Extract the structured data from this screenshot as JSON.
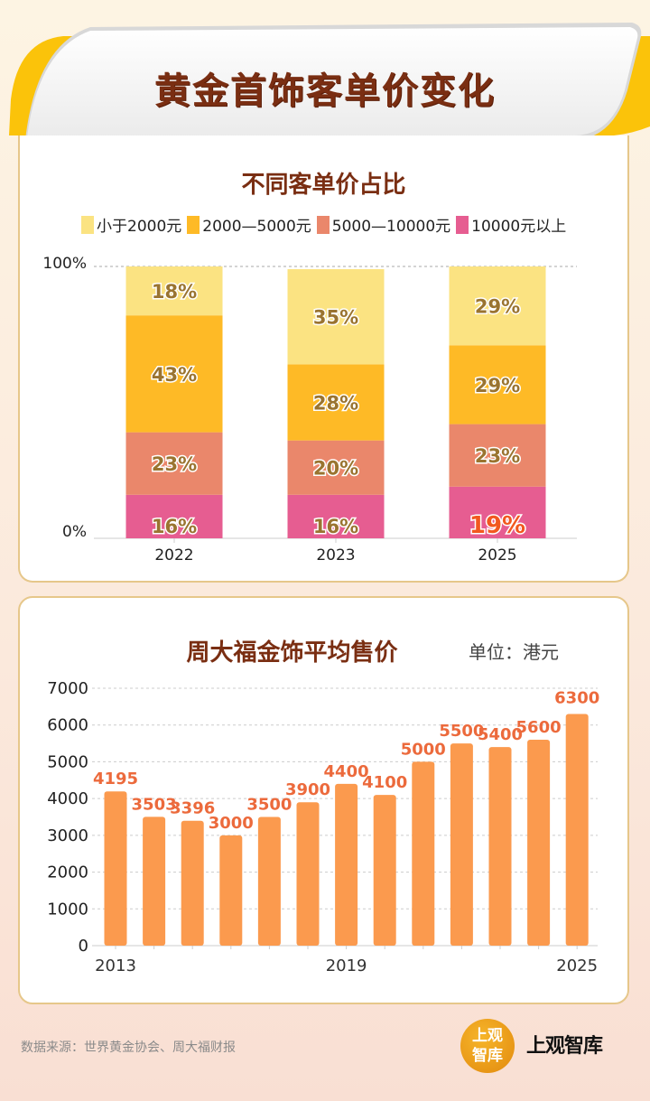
{
  "header": {
    "title": "黄金首饰客单价变化"
  },
  "colors": {
    "title_brown": "#7a2e12",
    "seg_lt2000": "#fbe382",
    "seg_2000_5000": "#feba26",
    "seg_5000_10000": "#ea876b",
    "seg_gt10000": "#e65d91",
    "seg_label": "#9a7430",
    "highlight_label": "#f2581f",
    "bar_orange": "#fb9a4e",
    "value_label": "#ec6a3c"
  },
  "chart_data": [
    {
      "type": "bar",
      "stacked": true,
      "title": "不同客单价占比",
      "categories": [
        "2022",
        "2023",
        "2025"
      ],
      "series": [
        {
          "name": "10000元以上",
          "values": [
            16,
            16,
            19
          ]
        },
        {
          "name": "5000—10000元",
          "values": [
            23,
            20,
            23
          ]
        },
        {
          "name": "2000—5000元",
          "values": [
            43,
            28,
            29
          ]
        },
        {
          "name": "小于2000元",
          "values": [
            18,
            35,
            29
          ]
        }
      ],
      "legend": [
        "小于2000元",
        "2000—5000元",
        "5000—10000元",
        "10000元以上"
      ],
      "legend_position": "top",
      "ytick_labels": [
        "0%",
        "100%"
      ],
      "ylim": [
        0,
        100
      ],
      "unit": "%",
      "highlight": {
        "category": "2025",
        "series": "10000元以上"
      }
    },
    {
      "type": "bar",
      "title": "周大福金饰平均售价",
      "unit_label": "单位：港元",
      "categories": [
        "2013",
        "2014",
        "2015",
        "2016",
        "2017",
        "2018",
        "2019",
        "2020",
        "2021",
        "2022",
        "2023",
        "2024",
        "2025"
      ],
      "values": [
        4195,
        3503,
        3396,
        3000,
        3500,
        3900,
        4400,
        4100,
        5000,
        5500,
        5400,
        5600,
        6300
      ],
      "xtick_labels_shown": [
        "2013",
        "2019",
        "2025"
      ],
      "yticks": [
        0,
        1000,
        2000,
        3000,
        4000,
        5000,
        6000,
        7000
      ],
      "ylim": [
        0,
        7000
      ],
      "grid": true
    }
  ],
  "footer": {
    "source": "数据来源：世界黄金协会、周大福财报",
    "logo_badge_line1": "上观",
    "logo_badge_line2": "智库",
    "logo_text": "上观智库"
  }
}
